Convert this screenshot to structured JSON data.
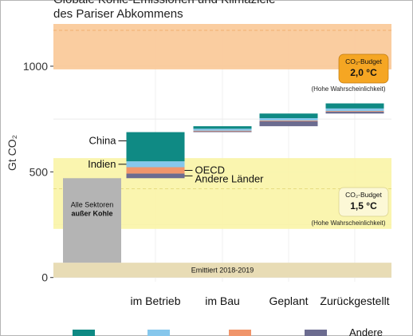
{
  "title_line1": "Globale Kohle-Emissionen und Klimaziele",
  "title_line2": "des Pariser Abkommens",
  "chart_data": {
    "type": "bar",
    "ylabel": "Gt CO₂",
    "ylim": [
      -20,
      1200
    ],
    "yticks": [
      0,
      500,
      1000
    ],
    "categories": [
      "im Betrieb",
      "im Bau",
      "Geplant",
      "Zurückgestellt"
    ],
    "stack_order": [
      "Andere Länder",
      "OECD",
      "Indien",
      "China"
    ],
    "series_colors": {
      "China": "#0f8a84",
      "Indien": "#86c7ec",
      "OECD": "#f0956b",
      "Andere Länder": "#6c6c90"
    },
    "waterfall": [
      {
        "category": "im Betrieb",
        "start": 470,
        "segments": {
          "Andere Länder": 22,
          "OECD": 30,
          "Indien": 28,
          "China": 138
        }
      },
      {
        "category": "im Bau",
        "start": 688,
        "segments": {
          "Andere Länder": 5,
          "OECD": 2,
          "Indien": 9,
          "China": 12
        }
      },
      {
        "category": "Geplant",
        "start": 716,
        "segments": {
          "Andere Länder": 24,
          "OECD": 3,
          "Indien": 11,
          "China": 22
        }
      },
      {
        "category": "Zurückgestellt",
        "start": 776,
        "segments": {
          "Andere Länder": 10,
          "OECD": 2,
          "Indien": 12,
          "China": 24
        }
      }
    ],
    "base_bar": {
      "label_line1": "Alle Sektoren",
      "label_line2": "außer Kohle",
      "bottom": 70,
      "top": 470,
      "color": "#b4b4b4"
    },
    "emitted_band": {
      "label": "Emittiert 2018-2019",
      "y0": 0,
      "y1": 70,
      "color": "#e8dcb5"
    },
    "budget_2_0": {
      "title": "CO₂-Budget",
      "value": "2,0 °C",
      "note": "(Hohe Wahrscheinlichkeit)",
      "y0": 985,
      "y1": 1335,
      "center": 1170,
      "band_color": "#f9c896",
      "box_color": "#f5a623"
    },
    "budget_1_5": {
      "title": "CO₂-Budget",
      "value": "1,5 °C",
      "note": "(Hohe Wahrscheinlichkeit)",
      "y0": 230,
      "y1": 565,
      "center": 420,
      "band_color": "#faf4a6",
      "box_color": "#fcf8d6"
    },
    "annotations": [
      "China",
      "Indien",
      "OECD",
      "Andere Länder"
    ],
    "legend_labels": [
      "",
      "",
      "",
      "Andere"
    ],
    "grid": true
  }
}
